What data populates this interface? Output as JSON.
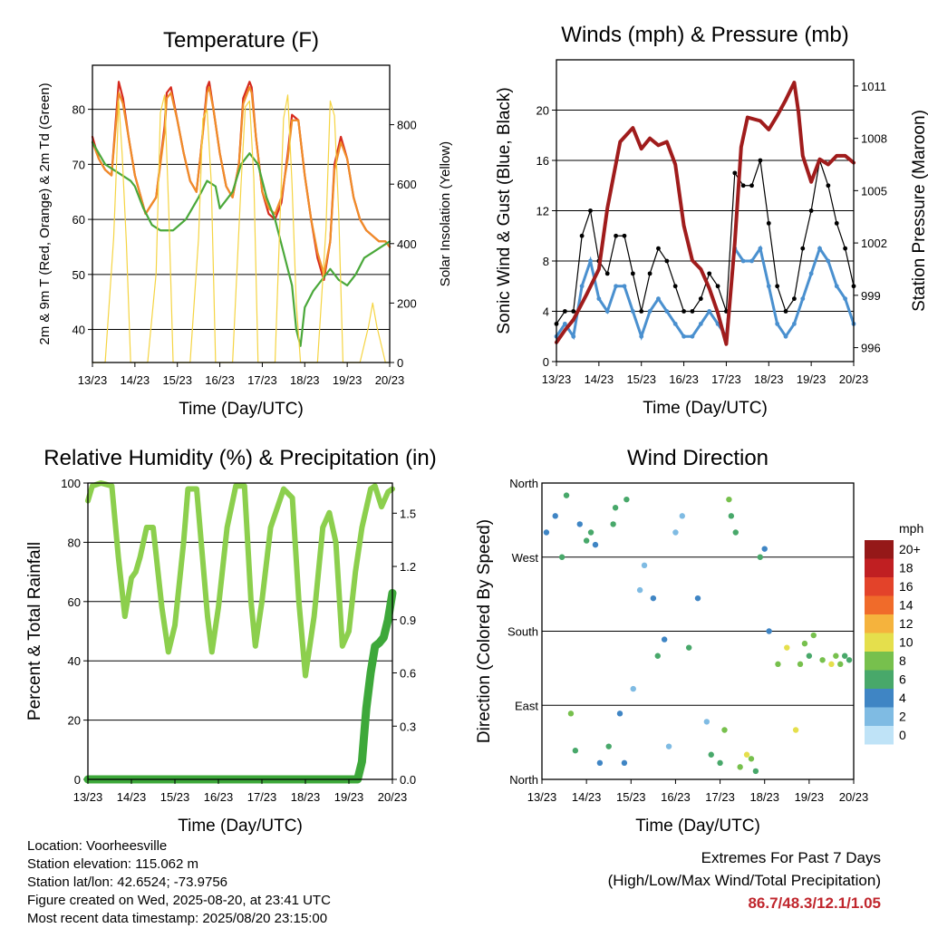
{
  "chart_data": [
    {
      "type": "line",
      "title": "Temperature (F)",
      "xlabel": "Time (Day/UTC)",
      "ylabel": "2m & 9m T (Red, Orange) & 2m Td (Green)",
      "ylabel_right": "Solar Insolation (Yellow)",
      "xticks": [
        "13/23",
        "14/23",
        "15/23",
        "16/23",
        "17/23",
        "18/23",
        "19/23",
        "20/23"
      ],
      "ylim": [
        34,
        88
      ],
      "yticks": [
        40,
        50,
        60,
        70,
        80
      ],
      "ylim_right": [
        0,
        1000
      ],
      "yticks_right": [
        0,
        200,
        400,
        600,
        800
      ],
      "x_unit": "days since 13/23",
      "series": [
        {
          "name": "2m T",
          "color": "#d62a1e",
          "x": [
            0,
            0.15,
            0.3,
            0.45,
            0.55,
            0.62,
            0.72,
            0.85,
            1.0,
            1.25,
            1.5,
            1.7,
            1.75,
            1.85,
            2.0,
            2.15,
            2.3,
            2.45,
            2.55,
            2.7,
            2.75,
            2.85,
            3.0,
            3.15,
            3.3,
            3.45,
            3.55,
            3.7,
            3.75,
            3.85,
            4.0,
            4.15,
            4.3,
            4.45,
            4.6,
            4.7,
            4.85,
            5.0,
            5.15,
            5.3,
            5.45,
            5.6,
            5.7,
            5.85,
            6.0,
            6.15,
            6.3,
            6.45,
            6.6,
            6.75,
            6.9,
            7.0
          ],
          "values": [
            75,
            71,
            69,
            68,
            78,
            85,
            82,
            75,
            68,
            61,
            64,
            77,
            83,
            84,
            78,
            72,
            67,
            65,
            72,
            84,
            85,
            80,
            72,
            66,
            64,
            70,
            82,
            85,
            84,
            75,
            65,
            61,
            60,
            63,
            72,
            79,
            78,
            68,
            60,
            53,
            49,
            56,
            70,
            75,
            71,
            64,
            60,
            58,
            57,
            56,
            56,
            55
          ]
        },
        {
          "name": "9m T",
          "color": "#f08c28",
          "x": [
            0,
            0.15,
            0.3,
            0.45,
            0.55,
            0.62,
            0.72,
            0.85,
            1.0,
            1.25,
            1.5,
            1.7,
            1.75,
            1.85,
            2.0,
            2.15,
            2.3,
            2.45,
            2.55,
            2.7,
            2.75,
            2.85,
            3.0,
            3.15,
            3.3,
            3.45,
            3.55,
            3.7,
            3.75,
            3.85,
            4.0,
            4.15,
            4.3,
            4.45,
            4.6,
            4.7,
            4.85,
            5.0,
            5.15,
            5.3,
            5.45,
            5.6,
            5.7,
            5.85,
            6.0,
            6.15,
            6.3,
            6.45,
            6.6,
            6.75,
            6.9,
            7.0
          ],
          "values": [
            74,
            71,
            69,
            68,
            77,
            83,
            81,
            75,
            68,
            61,
            64,
            76,
            82,
            83,
            78,
            72,
            67,
            65,
            72,
            83,
            84,
            80,
            72,
            66,
            64,
            70,
            81,
            84,
            83,
            75,
            65,
            62,
            61,
            64,
            71,
            78,
            78,
            68,
            60,
            54,
            50,
            56,
            69,
            74,
            71,
            64,
            60,
            58,
            57,
            56,
            56,
            55
          ]
        },
        {
          "name": "2m Td",
          "color": "#4aa83a",
          "x": [
            0,
            0.3,
            0.5,
            0.7,
            0.9,
            1.0,
            1.2,
            1.4,
            1.6,
            1.9,
            2.2,
            2.5,
            2.7,
            2.9,
            3.0,
            3.3,
            3.5,
            3.7,
            3.9,
            4.1,
            4.3,
            4.5,
            4.7,
            4.8,
            4.9,
            5.0,
            5.2,
            5.4,
            5.6,
            5.8,
            6.0,
            6.2,
            6.4,
            6.6,
            6.8,
            7.0
          ],
          "values": [
            74,
            70,
            69,
            68,
            67,
            66,
            62,
            59,
            58,
            58,
            60,
            64,
            67,
            66,
            62,
            65,
            70,
            72,
            70,
            64,
            60,
            54,
            48,
            40,
            37,
            44,
            47,
            49,
            51,
            49,
            48,
            50,
            53,
            54,
            55,
            56
          ]
        },
        {
          "name": "Solar Insolation",
          "color": "#f5d442",
          "axis": "right",
          "x": [
            0,
            0.3,
            0.5,
            0.55,
            0.62,
            0.7,
            0.8,
            0.9,
            1.3,
            1.5,
            1.6,
            1.7,
            1.8,
            1.9,
            2.3,
            2.5,
            2.6,
            2.7,
            2.8,
            2.9,
            3.3,
            3.5,
            3.6,
            3.7,
            3.8,
            3.9,
            4.3,
            4.5,
            4.6,
            4.7,
            4.8,
            4.9,
            5.3,
            5.5,
            5.6,
            5.7,
            5.8,
            5.9,
            6.3,
            6.5,
            6.6,
            6.7,
            6.8,
            6.9,
            7.0
          ],
          "values": [
            0,
            0,
            420,
            600,
            880,
            700,
            400,
            0,
            0,
            300,
            840,
            900,
            500,
            0,
            0,
            420,
            820,
            850,
            600,
            0,
            0,
            600,
            860,
            880,
            620,
            0,
            0,
            820,
            900,
            600,
            200,
            0,
            0,
            450,
            880,
            830,
            500,
            0,
            0,
            120,
            200,
            120,
            60,
            0,
            0
          ]
        }
      ]
    },
    {
      "type": "scatter",
      "title": "Winds (mph) & Pressure (mb)",
      "xlabel": "Time (Day/UTC)",
      "ylabel": "Sonic Wind & Gust (Blue, Black)",
      "ylabel_right": "Station Pressure (Maroon)",
      "xticks": [
        "13/23",
        "14/23",
        "15/23",
        "16/23",
        "17/23",
        "18/23",
        "19/23",
        "20/23"
      ],
      "ylim": [
        0,
        24
      ],
      "yticks": [
        0,
        4,
        8,
        12,
        16,
        20
      ],
      "ylim_right": [
        995.2,
        1012.5
      ],
      "yticks_right": [
        996,
        999,
        1002,
        1005,
        1008,
        1011
      ],
      "x_unit": "days since 13/23",
      "series": [
        {
          "name": "Sonic Wind",
          "color": "#4a90cf",
          "x": [
            0,
            0.2,
            0.4,
            0.6,
            0.8,
            1.0,
            1.2,
            1.4,
            1.6,
            1.8,
            2.0,
            2.2,
            2.4,
            2.6,
            2.8,
            3.0,
            3.2,
            3.4,
            3.6,
            3.8,
            4.0,
            4.2,
            4.4,
            4.6,
            4.8,
            5.0,
            5.2,
            5.4,
            5.6,
            5.8,
            6.0,
            6.2,
            6.4,
            6.6,
            6.8,
            7.0
          ],
          "values": [
            2,
            3,
            2,
            6,
            8,
            5,
            4,
            6,
            6,
            4,
            2,
            4,
            5,
            4,
            3,
            2,
            2,
            3,
            4,
            3,
            2,
            9,
            8,
            8,
            9,
            6,
            3,
            2,
            3,
            5,
            7,
            9,
            8,
            6,
            5,
            3
          ]
        },
        {
          "name": "Gust",
          "color": "#000000",
          "x": [
            0,
            0.2,
            0.4,
            0.6,
            0.8,
            1.0,
            1.2,
            1.4,
            1.6,
            1.8,
            2.0,
            2.2,
            2.4,
            2.6,
            2.8,
            3.0,
            3.2,
            3.4,
            3.6,
            3.8,
            4.0,
            4.2,
            4.4,
            4.6,
            4.8,
            5.0,
            5.2,
            5.4,
            5.6,
            5.8,
            6.0,
            6.2,
            6.4,
            6.6,
            6.8,
            7.0
          ],
          "values": [
            3,
            4,
            4,
            10,
            12,
            8,
            7,
            10,
            10,
            7,
            4,
            7,
            9,
            8,
            6,
            4,
            4,
            5,
            7,
            6,
            4,
            15,
            14,
            14,
            16,
            11,
            6,
            4,
            5,
            9,
            12,
            16,
            14,
            11,
            9,
            6
          ]
        },
        {
          "name": "Station Pressure",
          "color": "#a01c1c",
          "axis": "right",
          "x": [
            0,
            0.2,
            0.4,
            0.7,
            1.0,
            1.2,
            1.5,
            1.8,
            2.0,
            2.2,
            2.4,
            2.6,
            2.8,
            3.0,
            3.2,
            3.4,
            3.6,
            3.8,
            4.0,
            4.2,
            4.35,
            4.5,
            4.8,
            5.0,
            5.2,
            5.4,
            5.6,
            5.7,
            5.8,
            6.0,
            6.2,
            6.4,
            6.6,
            6.8,
            7.0
          ],
          "values": [
            996.3,
            997,
            997.6,
            999,
            1000.5,
            1004,
            1007.8,
            1008.6,
            1007.4,
            1008,
            1007.6,
            1007.8,
            1006.5,
            1003,
            1001,
            1000.5,
            999.4,
            998,
            996.2,
            1002,
            1007.5,
            1009.2,
            1009,
            1008.5,
            1009.3,
            1010.2,
            1011.2,
            1009.5,
            1007,
            1005.5,
            1006.8,
            1006.5,
            1007,
            1007,
            1006.6
          ]
        }
      ]
    },
    {
      "type": "line",
      "title": "Relative Humidity (%) & Precipitation (in)",
      "xlabel": "Time (Day/UTC)",
      "ylabel": "Percent & Total Rainfall",
      "xticks": [
        "13/23",
        "14/23",
        "15/23",
        "16/23",
        "17/23",
        "18/23",
        "19/23",
        "20/23"
      ],
      "ylim": [
        0,
        100
      ],
      "yticks": [
        0,
        20,
        40,
        60,
        80,
        100
      ],
      "ylim_right": [
        0,
        1.67
      ],
      "yticks_right": [
        0.0,
        0.3,
        0.6,
        0.9,
        1.2,
        1.5
      ],
      "x_unit": "days since 13/23",
      "series": [
        {
          "name": "Relative Humidity",
          "color": "#8ccf4d",
          "x": [
            0,
            0.1,
            0.3,
            0.55,
            0.7,
            0.85,
            1.0,
            1.1,
            1.2,
            1.35,
            1.5,
            1.7,
            1.85,
            2.0,
            2.2,
            2.3,
            2.5,
            2.75,
            2.85,
            3.0,
            3.2,
            3.4,
            3.6,
            3.75,
            3.85,
            4.0,
            4.2,
            4.5,
            4.7,
            4.85,
            5.0,
            5.2,
            5.4,
            5.55,
            5.7,
            5.85,
            6.0,
            6.15,
            6.3,
            6.5,
            6.6,
            6.75,
            6.9,
            7.0
          ],
          "values": [
            94,
            99,
            100,
            99,
            75,
            55,
            68,
            70,
            75,
            85,
            85,
            58,
            43,
            52,
            80,
            98,
            98,
            55,
            43,
            58,
            85,
            99,
            99,
            60,
            45,
            60,
            85,
            98,
            95,
            60,
            35,
            55,
            85,
            90,
            80,
            45,
            50,
            70,
            85,
            98,
            99,
            92,
            97,
            98
          ]
        },
        {
          "name": "Total Rainfall",
          "color": "#3da83a",
          "axis": "right",
          "x": [
            0,
            1.0,
            2.0,
            3.0,
            4.0,
            5.0,
            6.0,
            6.2,
            6.3,
            6.4,
            6.5,
            6.6,
            6.7,
            6.8,
            6.9,
            7.0
          ],
          "values": [
            0,
            0,
            0,
            0,
            0,
            0,
            0,
            0,
            0.1,
            0.4,
            0.6,
            0.75,
            0.77,
            0.8,
            0.9,
            1.05
          ]
        }
      ]
    },
    {
      "type": "scatter",
      "title": "Wind Direction",
      "xlabel": "Time (Day/UTC)",
      "ylabel": "Direction (Colored By Speed)",
      "xticks": [
        "13/23",
        "14/23",
        "15/23",
        "16/23",
        "17/23",
        "18/23",
        "19/23",
        "20/23"
      ],
      "yticks": [
        "North",
        "East",
        "South",
        "West",
        "North"
      ],
      "ylim": [
        0,
        360
      ],
      "legend_title": "mph",
      "legend_labels": [
        "0",
        "2",
        "4",
        "6",
        "8",
        "10",
        "12",
        "14",
        "16",
        "18",
        "20+"
      ],
      "legend_colors": [
        "#bfe3f7",
        "#7fbbe3",
        "#3f85c4",
        "#48a86a",
        "#77c04d",
        "#e5df4c",
        "#f5b33d",
        "#f06b2a",
        "#e3432a",
        "#c01f22",
        "#951818"
      ],
      "x_unit": "days since 13/23",
      "series": [
        {
          "name": "Direction",
          "x": [
            0.1,
            0.3,
            0.45,
            0.55,
            0.65,
            0.75,
            0.85,
            1.0,
            1.1,
            1.2,
            1.3,
            1.5,
            1.6,
            1.65,
            1.75,
            1.85,
            1.9,
            2.05,
            2.2,
            2.3,
            2.5,
            2.6,
            2.75,
            2.85,
            3.0,
            3.15,
            3.3,
            3.5,
            3.7,
            3.8,
            4.0,
            4.1,
            4.2,
            4.25,
            4.35,
            4.45,
            4.6,
            4.7,
            4.8,
            4.9,
            5.0,
            5.1,
            5.3,
            5.5,
            5.7,
            5.8,
            5.9,
            6.0,
            6.1,
            6.3,
            6.5,
            6.6,
            6.7,
            6.8,
            6.9
          ],
          "values": [
            300,
            320,
            270,
            345,
            80,
            35,
            310,
            290,
            300,
            285,
            20,
            40,
            310,
            330,
            80,
            20,
            340,
            110,
            230,
            260,
            220,
            150,
            170,
            40,
            300,
            320,
            160,
            220,
            70,
            30,
            20,
            60,
            340,
            320,
            300,
            15,
            30,
            25,
            10,
            270,
            280,
            180,
            140,
            160,
            60,
            140,
            165,
            150,
            175,
            145,
            140,
            150,
            140,
            150,
            145
          ],
          "speeds": [
            3,
            4,
            5,
            6,
            7,
            5,
            4,
            6,
            5,
            4,
            3,
            5,
            6,
            5,
            4,
            3,
            5,
            2,
            2,
            1,
            3,
            6,
            4,
            2,
            1,
            2,
            5,
            3,
            2,
            6,
            5,
            7,
            7,
            6,
            5,
            7,
            9,
            8,
            6,
            5,
            4,
            3,
            8,
            10,
            9,
            8,
            7,
            6,
            7,
            8,
            9,
            8,
            7,
            6,
            5
          ]
        }
      ]
    }
  ],
  "footer": {
    "location": "Location: Voorheesville",
    "elevation": "Station elevation: 115.062 m",
    "latlon": "Station lat/lon: 42.6524; -73.9756",
    "created": "Figure created on Wed, 2025-08-20, at 23:41 UTC",
    "timestamp": "Most recent data timestamp: 2025/08/20 23:15:00"
  },
  "extremes": {
    "title": "Extremes For Past 7 Days",
    "subtitle": "(High/Low/Max Wind/Total Precipitation)",
    "values": "86.7/48.3/12.1/1.05"
  }
}
